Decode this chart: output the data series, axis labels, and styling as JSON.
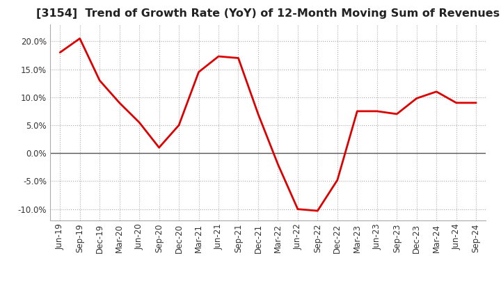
{
  "title": "[3154]  Trend of Growth Rate (YoY) of 12-Month Moving Sum of Revenues",
  "line_color": "#dd0000",
  "background_color": "#ffffff",
  "plot_bg_color": "#ffffff",
  "grid_color": "#aaaaaa",
  "title_fontsize": 11.5,
  "tick_label_fontsize": 8.5,
  "x_labels": [
    "Jun-19",
    "Sep-19",
    "Dec-19",
    "Mar-20",
    "Jun-20",
    "Sep-20",
    "Dec-20",
    "Mar-21",
    "Jun-21",
    "Sep-21",
    "Dec-21",
    "Mar-22",
    "Jun-22",
    "Sep-22",
    "Dec-22",
    "Mar-23",
    "Jun-23",
    "Sep-23",
    "Dec-23",
    "Mar-24",
    "Jun-24",
    "Sep-24"
  ],
  "y_values": [
    18.0,
    20.5,
    13.0,
    9.0,
    5.5,
    1.0,
    5.0,
    14.5,
    17.3,
    17.0,
    7.0,
    -2.0,
    -10.0,
    -10.3,
    -4.8,
    7.5,
    7.5,
    7.0,
    9.8,
    11.0,
    9.0,
    9.0
  ],
  "ylim": [
    -12,
    23
  ],
  "yticks": [
    -10.0,
    -5.0,
    0.0,
    5.0,
    10.0,
    15.0,
    20.0
  ]
}
